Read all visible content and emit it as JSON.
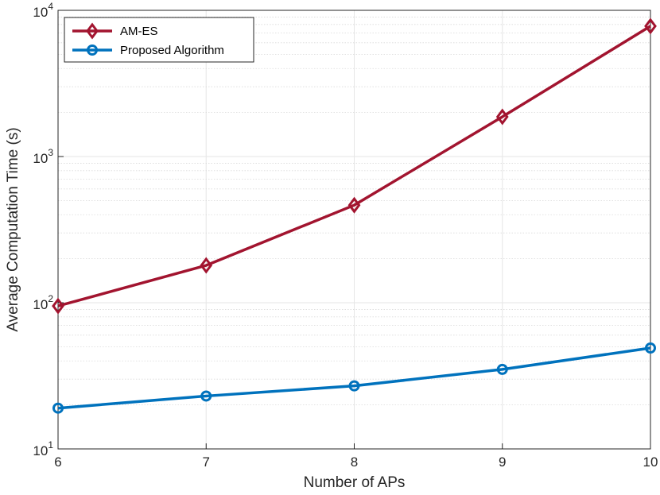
{
  "chart_data": {
    "type": "line",
    "title": "",
    "xlabel": "Number of APs",
    "ylabel": "Average Computation Time (s)",
    "x": [
      6,
      7,
      8,
      9,
      10
    ],
    "xlim": [
      6,
      10
    ],
    "ylim": [
      10,
      10000
    ],
    "yscale": "log",
    "x_ticks": [
      "6",
      "7",
      "8",
      "9",
      "10"
    ],
    "y_ticks": [
      {
        "base": "10",
        "exp": "1"
      },
      {
        "base": "10",
        "exp": "2"
      },
      {
        "base": "10",
        "exp": "3"
      },
      {
        "base": "10",
        "exp": "4"
      }
    ],
    "grid": true,
    "minor_grid": true,
    "legend_position": "top-left",
    "series": [
      {
        "name": "AM-ES",
        "color": "#A2142F",
        "marker": "diamond",
        "values": [
          95,
          180,
          465,
          1870,
          7800
        ]
      },
      {
        "name": "Proposed Algorithm",
        "color": "#0072BD",
        "marker": "circle",
        "values": [
          19,
          23,
          27,
          35,
          49
        ]
      }
    ]
  }
}
